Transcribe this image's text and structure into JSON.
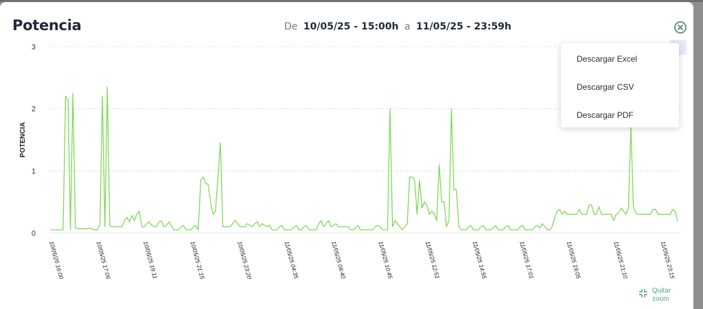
{
  "header": {
    "title": "Potencia",
    "from_label": "De",
    "start": "10/05/25 - 15:00h",
    "to_label": "a",
    "end": "11/05/25 - 23:59h"
  },
  "menu": [
    "Descargar Excel",
    "Descargar CSV",
    "Descargar PDF"
  ],
  "zoom": {
    "line1": "Quitar",
    "line2": "zoom"
  },
  "colors": {
    "line": "#7ed957",
    "grid": "#e3e3e3",
    "text": "#1f2a38",
    "accent": "#4fa38a"
  },
  "chart_data": {
    "type": "line",
    "ylabel": "POTENCIA",
    "ylim": [
      0,
      3
    ],
    "yticks": [
      "0",
      "1",
      "2",
      "3"
    ],
    "xticks": [
      "10/05/25 16:00",
      "10/05/25 17:06",
      "10/05/25 19:11",
      "10/05/25 21:15",
      "10/05/25 23:20",
      "11/05/25 04:35",
      "11/05/25 08:40",
      "11/05/25 10:45",
      "11/05/25 12:51",
      "11/05/25 14:55",
      "11/05/25 17:01",
      "11/05/25 19:05",
      "11/05/25 21:10",
      "11/05/25 23:15"
    ],
    "series": [
      {
        "values": [
          0.05,
          0.05,
          0.05,
          0.05,
          0.05,
          0.05,
          2.2,
          2.15,
          0.05,
          2.25,
          0.08,
          0.07,
          0.07,
          0.07,
          0.07,
          0.07,
          0.08,
          0.06,
          0.05,
          0.05,
          0.15,
          2.2,
          0.1,
          2.35,
          0.12,
          0.1,
          0.1,
          0.1,
          0.1,
          0.1,
          0.2,
          0.25,
          0.18,
          0.28,
          0.2,
          0.3,
          0.35,
          0.1,
          0.1,
          0.15,
          0.18,
          0.12,
          0.1,
          0.1,
          0.18,
          0.2,
          0.1,
          0.12,
          0.18,
          0.12,
          0.05,
          0.05,
          0.05,
          0.1,
          0.12,
          0.05,
          0.05,
          0.05,
          0.1,
          0.12,
          0.05,
          0.85,
          0.9,
          0.8,
          0.78,
          0.5,
          0.3,
          0.35,
          0.9,
          1.45,
          0.1,
          0.1,
          0.1,
          0.1,
          0.15,
          0.2,
          0.15,
          0.1,
          0.1,
          0.1,
          0.15,
          0.12,
          0.1,
          0.15,
          0.18,
          0.1,
          0.15,
          0.12,
          0.1,
          0.12,
          0.05,
          0.05,
          0.05,
          0.1,
          0.12,
          0.05,
          0.05,
          0.05,
          0.05,
          0.1,
          0.12,
          0.05,
          0.05,
          0.1,
          0.12,
          0.05,
          0.05,
          0.05,
          0.05,
          0.15,
          0.2,
          0.1,
          0.15,
          0.2,
          0.1,
          0.12,
          0.15,
          0.1,
          0.1,
          0.1,
          0.1,
          0.1,
          0.05,
          0.05,
          0.08,
          0.12,
          0.05,
          0.05,
          0.05,
          0.05,
          0.05,
          0.05,
          0.1,
          0.12,
          0.1,
          0.05,
          0.05,
          0.05,
          2.0,
          0.1,
          0.2,
          0.15,
          0.1,
          0.05,
          0.1,
          0.15,
          0.9,
          0.9,
          0.85,
          0.3,
          0.85,
          0.4,
          0.5,
          0.45,
          0.3,
          0.35,
          0.3,
          0.2,
          1.1,
          0.5,
          0.5,
          0.1,
          0.2,
          2.0,
          0.7,
          0.7,
          0.1,
          0.05,
          0.05,
          0.05,
          0.1,
          0.12,
          0.05,
          0.05,
          0.05,
          0.1,
          0.12,
          0.05,
          0.05,
          0.05,
          0.08,
          0.12,
          0.05,
          0.05,
          0.05,
          0.1,
          0.12,
          0.05,
          0.05,
          0.05,
          0.05,
          0.1,
          0.12,
          0.05,
          0.05,
          0.05,
          0.05,
          0.1,
          0.12,
          0.08,
          0.15,
          0.1,
          0.05,
          0.05,
          0.1,
          0.25,
          0.35,
          0.38,
          0.3,
          0.35,
          0.3,
          0.3,
          0.3,
          0.3,
          0.3,
          0.38,
          0.3,
          0.3,
          0.3,
          0.45,
          0.45,
          0.3,
          0.3,
          0.42,
          0.3,
          0.3,
          0.3,
          0.3,
          0.3,
          0.2,
          0.3,
          0.32,
          0.4,
          0.35,
          0.3,
          0.4,
          1.7,
          0.42,
          0.32,
          0.3,
          0.3,
          0.3,
          0.3,
          0.3,
          0.3,
          0.38,
          0.38,
          0.3,
          0.3,
          0.3,
          0.3,
          0.3,
          0.3,
          0.38,
          0.35,
          0.2
        ]
      }
    ]
  }
}
